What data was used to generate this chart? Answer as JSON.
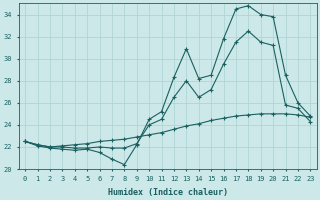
{
  "xlabel": "Humidex (Indice chaleur)",
  "bg_color": "#cce8e8",
  "grid_color": "#b0d4d4",
  "line_color": "#1a6060",
  "xlim": [
    -0.5,
    23.5
  ],
  "ylim": [
    20,
    35
  ],
  "xticks": [
    0,
    1,
    2,
    3,
    4,
    5,
    6,
    7,
    8,
    9,
    10,
    11,
    12,
    13,
    14,
    15,
    16,
    17,
    18,
    19,
    20,
    21,
    22,
    23
  ],
  "yticks": [
    20,
    22,
    24,
    26,
    28,
    30,
    32,
    34
  ],
  "line1_y": [
    22.5,
    22.1,
    21.9,
    21.8,
    21.7,
    21.8,
    21.5,
    20.9,
    20.4,
    22.2,
    24.5,
    25.2,
    28.3,
    30.9,
    28.2,
    28.5,
    31.8,
    34.5,
    34.8,
    34.0,
    33.8,
    28.5,
    26.0,
    24.8
  ],
  "line2_y": [
    22.5,
    22.2,
    22.0,
    22.0,
    21.9,
    21.9,
    22.0,
    21.9,
    21.9,
    22.3,
    24.0,
    24.5,
    26.5,
    28.0,
    26.5,
    27.2,
    29.5,
    31.5,
    32.5,
    31.5,
    31.2,
    25.8,
    25.5,
    24.3
  ],
  "line3_y": [
    22.5,
    22.2,
    22.0,
    22.1,
    22.2,
    22.3,
    22.5,
    22.6,
    22.7,
    22.9,
    23.1,
    23.3,
    23.6,
    23.9,
    24.1,
    24.4,
    24.6,
    24.8,
    24.9,
    25.0,
    25.0,
    25.0,
    24.9,
    24.7
  ],
  "xlabel_fontsize": 6,
  "tick_fontsize": 5
}
